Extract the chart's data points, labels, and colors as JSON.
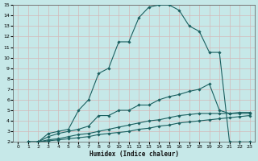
{
  "xlabel": "Humidex (Indice chaleur)",
  "xlim": [
    -0.5,
    23.5
  ],
  "ylim": [
    2,
    15
  ],
  "xticks": [
    0,
    1,
    2,
    3,
    4,
    5,
    6,
    7,
    8,
    9,
    10,
    11,
    12,
    13,
    14,
    15,
    16,
    17,
    18,
    19,
    20,
    21,
    22,
    23
  ],
  "yticks": [
    2,
    3,
    4,
    5,
    6,
    7,
    8,
    9,
    10,
    11,
    12,
    13,
    14,
    15
  ],
  "bg_color": "#c6e8e8",
  "grid_color": "#afd0d0",
  "line_color": "#1a6060",
  "lines": [
    {
      "x": [
        1,
        2,
        3,
        4,
        5,
        6,
        7,
        8,
        9,
        10,
        11,
        12,
        13,
        14,
        15,
        16,
        17,
        18,
        19,
        20,
        21,
        22,
        23
      ],
      "y": [
        2,
        2,
        2.8,
        3.0,
        3.2,
        5.0,
        6.0,
        8.5,
        9.0,
        11.5,
        11.5,
        13.8,
        14.8,
        15.0,
        15.0,
        14.5,
        13.0,
        12.5,
        10.5,
        10.5,
        2,
        2,
        2
      ]
    },
    {
      "x": [
        1,
        2,
        3,
        4,
        5,
        6,
        7,
        8,
        9,
        10,
        11,
        12,
        13,
        14,
        15,
        16,
        17,
        18,
        19,
        20,
        21,
        22,
        23
      ],
      "y": [
        2,
        2,
        2.5,
        2.8,
        3.0,
        3.2,
        3.5,
        4.5,
        4.5,
        5.0,
        5.0,
        5.5,
        5.5,
        6.0,
        6.3,
        6.5,
        6.8,
        7.0,
        7.5,
        5.0,
        4.7,
        4.7,
        4.7
      ]
    },
    {
      "x": [
        1,
        2,
        3,
        4,
        5,
        6,
        7,
        8,
        9,
        10,
        11,
        12,
        13,
        14,
        15,
        16,
        17,
        18,
        19,
        20,
        21,
        22,
        23
      ],
      "y": [
        2,
        2,
        2.2,
        2.3,
        2.5,
        2.7,
        2.8,
        3.0,
        3.2,
        3.4,
        3.6,
        3.8,
        4.0,
        4.1,
        4.3,
        4.5,
        4.6,
        4.7,
        4.7,
        4.7,
        4.7,
        4.8,
        4.8
      ]
    },
    {
      "x": [
        1,
        2,
        3,
        4,
        5,
        6,
        7,
        8,
        9,
        10,
        11,
        12,
        13,
        14,
        15,
        16,
        17,
        18,
        19,
        20,
        21,
        22,
        23
      ],
      "y": [
        2,
        2,
        2.1,
        2.2,
        2.3,
        2.4,
        2.5,
        2.7,
        2.8,
        2.9,
        3.0,
        3.2,
        3.3,
        3.5,
        3.6,
        3.8,
        3.9,
        4.0,
        4.1,
        4.2,
        4.3,
        4.4,
        4.5
      ]
    }
  ]
}
